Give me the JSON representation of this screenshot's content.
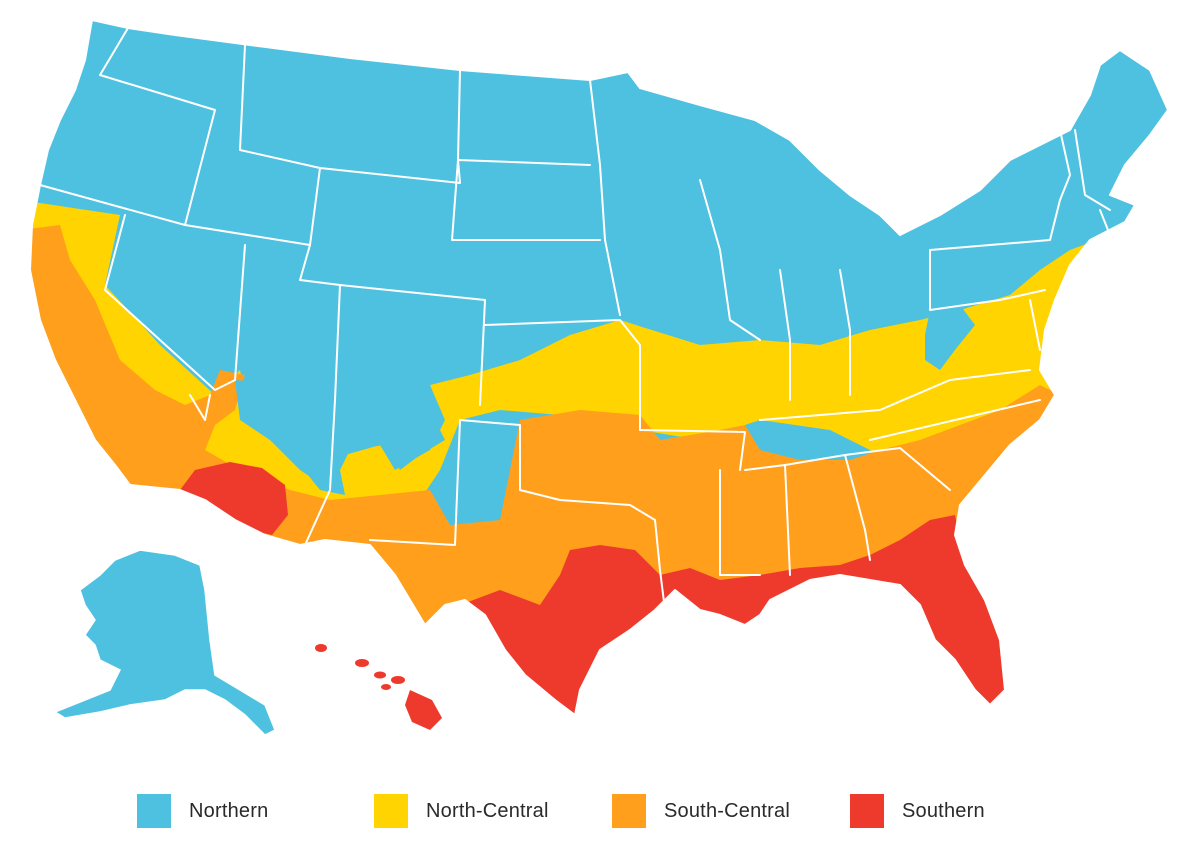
{
  "colors": {
    "northern": "#4ec1e0",
    "north_central": "#ffd400",
    "south_central": "#ff9f1c",
    "southern": "#ee3a2d",
    "border": "#ffffff"
  },
  "legend": {
    "items": [
      {
        "label": "Northern",
        "color": "#4ec1e0"
      },
      {
        "label": "North-Central",
        "color": "#ffd400"
      },
      {
        "label": "South-Central",
        "color": "#ff9f1c"
      },
      {
        "label": "Southern",
        "color": "#ee3a2d"
      }
    ]
  }
}
